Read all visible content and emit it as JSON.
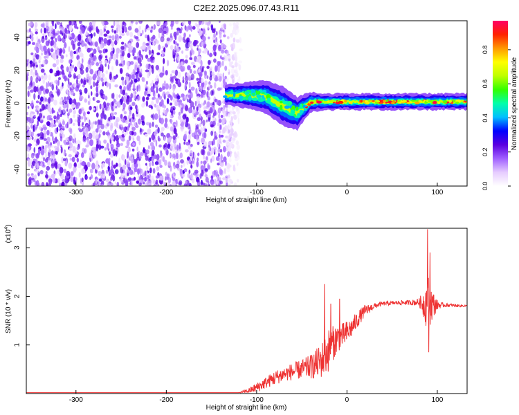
{
  "figure_title": "C2E2.2025.096.07.43.R11",
  "chart_data": [
    {
      "type": "heatmap",
      "xlabel": "Height of straight line (km)",
      "ylabel": "Frequency (Hz)",
      "xlim": [
        -355,
        133
      ],
      "ylim": [
        -50,
        50
      ],
      "x_ticks": [
        -300,
        -200,
        -100,
        0,
        100
      ],
      "y_ticks": [
        -40,
        -20,
        0,
        20,
        40
      ],
      "colorbar": {
        "label": "Normalized spectral amplitude",
        "range": [
          0,
          0.97
        ],
        "ticks": [
          "0.0",
          "0.2",
          "0.4",
          "0.6",
          "0.8"
        ],
        "colors": [
          "#ffffff",
          "#e6ccff",
          "#a060ff",
          "#5a00e0",
          "#0000ff",
          "#00bfff",
          "#00ffaa",
          "#33ff00",
          "#bfff00",
          "#ffff00",
          "#ff9900",
          "#ff2200",
          "#ff0066"
        ]
      },
      "noise_region_x": [
        -355,
        -125
      ],
      "signal_track": [
        {
          "x": -135,
          "center": 5,
          "halfwidth": 3
        },
        {
          "x": -110,
          "center": 5,
          "halfwidth": 4
        },
        {
          "x": -90,
          "center": 4,
          "halfwidth": 5
        },
        {
          "x": -70,
          "center": -2,
          "halfwidth": 6
        },
        {
          "x": -55,
          "center": -6,
          "halfwidth": 5
        },
        {
          "x": -40,
          "center": 1,
          "halfwidth": 3
        },
        {
          "x": -25,
          "center": 1,
          "halfwidth": 2.5
        },
        {
          "x": 0,
          "center": 1,
          "halfwidth": 2.5
        },
        {
          "x": 40,
          "center": 1,
          "halfwidth": 2.5
        },
        {
          "x": 80,
          "center": 1,
          "halfwidth": 2.5
        },
        {
          "x": 133,
          "center": 1,
          "halfwidth": 2.5
        }
      ]
    },
    {
      "type": "line",
      "xlabel": "Height of straight line (km)",
      "ylabel": "SNR (10 * v/v)",
      "y_multiplier": "(x10",
      "y_multiplier_exp": "4",
      "y_multiplier_close": ")",
      "xlim": [
        -355,
        133
      ],
      "ylim": [
        0,
        3.4
      ],
      "x_ticks": [
        -300,
        -200,
        -100,
        0,
        100
      ],
      "y_ticks": [
        1,
        2,
        3
      ],
      "series": [
        {
          "color": "#ee3333",
          "x": [
            -355,
            -200,
            -120,
            -110,
            -100,
            -90,
            -80,
            -70,
            -60,
            -50,
            -40,
            -30,
            -25,
            -20,
            -15,
            -10,
            -5,
            0,
            5,
            10,
            15,
            20,
            30,
            40,
            50,
            60,
            70,
            80,
            85,
            88,
            90,
            92,
            95,
            100,
            105,
            110,
            120,
            133
          ],
          "y": [
            0.02,
            0.02,
            0.02,
            0.05,
            0.12,
            0.22,
            0.32,
            0.4,
            0.45,
            0.5,
            0.55,
            0.65,
            0.75,
            0.9,
            1.05,
            1.15,
            1.2,
            1.25,
            1.35,
            1.48,
            1.6,
            1.7,
            1.8,
            1.85,
            1.86,
            1.87,
            1.87,
            1.88,
            1.85,
            1.85,
            1.85,
            1.85,
            1.83,
            1.82,
            1.82,
            1.82,
            1.81,
            1.8
          ],
          "noise": [
            0,
            0,
            0,
            0.05,
            0.1,
            0.12,
            0.15,
            0.15,
            0.18,
            0.2,
            0.25,
            0.35,
            0.4,
            0.45,
            0.35,
            0.3,
            0.25,
            0.25,
            0.2,
            0.18,
            0.15,
            0.12,
            0.06,
            0.04,
            0.04,
            0.05,
            0.05,
            0.08,
            0.3,
            0.5,
            0.6,
            0.45,
            0.3,
            0.1,
            0.05,
            0.04,
            0.03,
            0.02
          ],
          "spikes": [
            {
              "x": -25,
              "y": 2.25
            },
            {
              "x": -18,
              "y": 1.85
            },
            {
              "x": -8,
              "y": 1.95
            },
            {
              "x": 89,
              "y": 3.38
            },
            {
              "x": 90.5,
              "y": 0.85
            },
            {
              "x": 92,
              "y": 2.9
            }
          ]
        }
      ]
    }
  ]
}
